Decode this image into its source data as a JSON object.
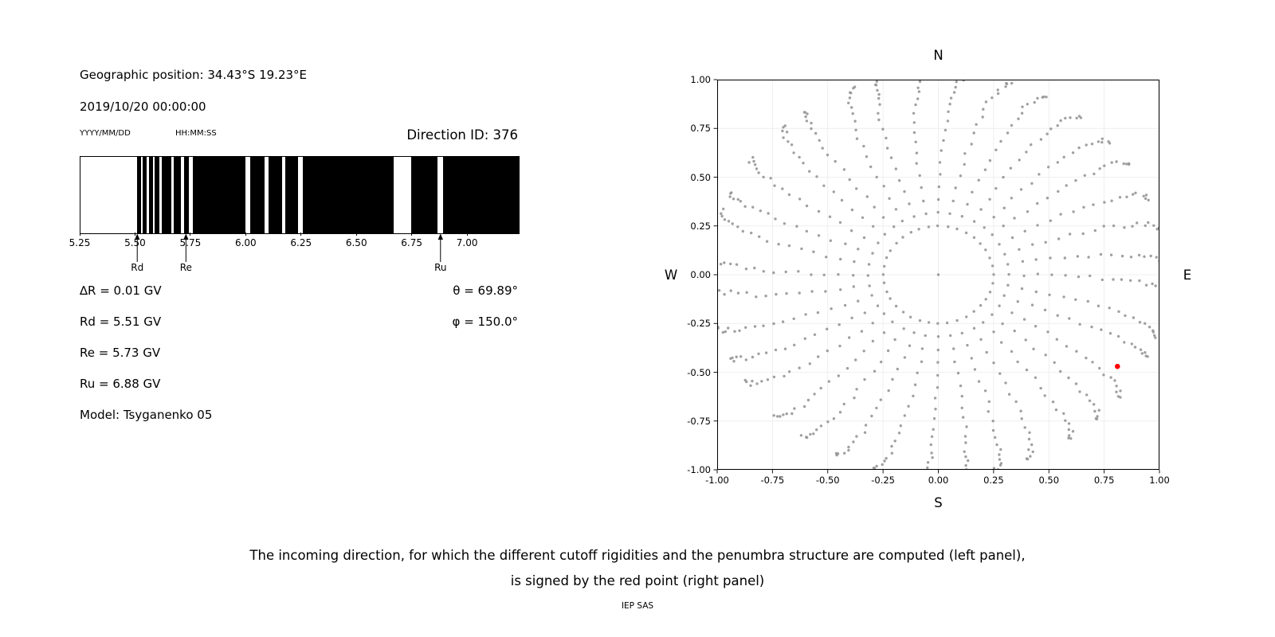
{
  "left_panel": {
    "geo_position": "Geographic position: 34.43°S 19.23°E",
    "datetime": "2019/10/20 00:00:00",
    "date_format_label": "YYYY/MM/DD",
    "time_format_label": "HH:MM:SS",
    "direction_id_label": "Direction ID: 376",
    "values": [
      "∆R = 0.01 GV",
      "Rd = 5.51 GV",
      "Re = 5.73 GV",
      "Ru = 6.88 GV"
    ],
    "model_label": "Model: Tsyganenko 05",
    "theta_label": "θ = 69.89°",
    "phi_label": "φ = 150.0°"
  },
  "right_panel": {
    "compass": {
      "north": "N",
      "south": "S",
      "east": "E",
      "west": "W"
    }
  },
  "caption": {
    "line1": "The incoming direction, for which the different cutoff rigidities and the penumbra structure are computed (left panel),",
    "line2": "is signed by the red point (right panel)",
    "credit": "IEP SAS"
  },
  "chart_data": [
    {
      "type": "bar",
      "name": "penumbra-structure",
      "xlim": [
        5.25,
        7.23
      ],
      "xticks": [
        5.25,
        5.5,
        5.75,
        6.0,
        6.25,
        6.5,
        6.75,
        7.0
      ],
      "xtick_labels": [
        "5.25",
        "5.50",
        "5.75",
        "6.00",
        "6.25",
        "6.50",
        "6.75",
        "7.00"
      ],
      "band_color": "#000000",
      "background": "#ffffff",
      "black_bands_gv": [
        [
          5.505,
          5.525
        ],
        [
          5.532,
          5.55
        ],
        [
          5.558,
          5.578
        ],
        [
          5.585,
          5.605
        ],
        [
          5.618,
          5.66
        ],
        [
          5.672,
          5.705
        ],
        [
          5.718,
          5.738
        ],
        [
          5.758,
          5.997
        ],
        [
          6.015,
          6.08
        ],
        [
          6.098,
          6.16
        ],
        [
          6.174,
          6.232
        ],
        [
          6.254,
          6.665
        ],
        [
          6.745,
          6.862
        ],
        [
          6.888,
          7.23
        ]
      ],
      "markers": [
        {
          "label": "Rd",
          "x": 5.51
        },
        {
          "label": "Re",
          "x": 5.73
        },
        {
          "label": "Ru",
          "x": 6.88
        }
      ],
      "cutoffs": {
        "delta_R_GV": 0.01,
        "Rd_GV": 5.51,
        "Re_GV": 5.73,
        "Ru_GV": 6.88,
        "model": "Tsyganenko 05",
        "theta_deg": 69.89,
        "phi_deg": 150.0,
        "direction_id": 376
      }
    },
    {
      "type": "scatter",
      "name": "incoming-directions-map",
      "xlim": [
        -1,
        1
      ],
      "ylim": [
        -1,
        1
      ],
      "xticks": [
        -1.0,
        -0.75,
        -0.5,
        -0.25,
        0.0,
        0.25,
        0.5,
        0.75,
        1.0
      ],
      "yticks": [
        -1.0,
        -0.75,
        -0.5,
        -0.25,
        0.0,
        0.25,
        0.5,
        0.75,
        1.0
      ],
      "xtick_labels": [
        "-1.00",
        "-0.75",
        "-0.50",
        "-0.25",
        "0.00",
        "0.25",
        "0.50",
        "0.75",
        "1.00"
      ],
      "ytick_labels": [
        "-1.00",
        "-0.75",
        "-0.50",
        "-0.25",
        "0.00",
        "0.25",
        "0.50",
        "0.75",
        "1.00"
      ],
      "axis_letters": {
        "top": "N",
        "bottom": "S",
        "left": "W",
        "right": "E"
      },
      "grid": true,
      "dot_color": "#969696",
      "center_dot": true,
      "spokes": {
        "count": 36,
        "azimuth_start_deg": 0,
        "azimuth_step_deg": 10,
        "zenith_min_deg": 14,
        "zenith_step_deg": 4,
        "points_per_spoke": 20,
        "radius_scale": 1.03,
        "curl_deg_min": 4,
        "curl_deg_max": 9
      },
      "red_point": {
        "x": 0.81,
        "y": -0.47,
        "color": "#ff0000"
      }
    }
  ]
}
